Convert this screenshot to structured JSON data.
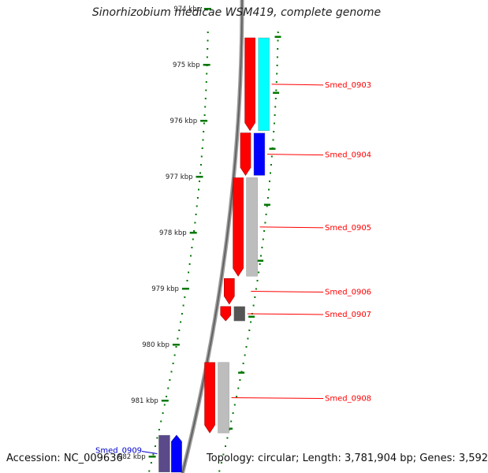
{
  "title": "Sinorhizobium medicae WSM419, complete genome",
  "footer": {
    "accession": "Accession: NC_009636",
    "topology": "Topology: circular; Length: 3,781,904 bp; Genes: 3,592"
  },
  "axis": {
    "unit": "kbp",
    "ticks": [
      "974 kbp",
      "975 kbp",
      "976 kbp",
      "977 kbp",
      "978 kbp",
      "979 kbp",
      "980 kbp",
      "981 kbp",
      "982 kbp"
    ]
  },
  "colors": {
    "cds_forward": "#ff0000",
    "cds_reverse_label": "#0000cc",
    "cog_cyan": "#00ffff",
    "cog_blue": "#0000ff",
    "cog_grey": "#bdbdbd",
    "cog_dark": "#555555",
    "cog_purple": "#5a4a8a",
    "backbone": "#808080",
    "tick": "#007700"
  },
  "genes": [
    {
      "label": "Smed_0903",
      "strand": "forward",
      "start_kbp": 974.5,
      "end_kbp": 976.2,
      "cog_color": "cyan"
    },
    {
      "label": "Smed_0904",
      "strand": "forward",
      "start_kbp": 976.2,
      "end_kbp": 977.0,
      "cog_color": "blue"
    },
    {
      "label": "Smed_0905",
      "strand": "forward",
      "start_kbp": 977.0,
      "end_kbp": 978.8,
      "cog_color": "grey"
    },
    {
      "label": "Smed_0906",
      "strand": "forward",
      "start_kbp": 978.8,
      "end_kbp": 979.3,
      "cog_color": "none"
    },
    {
      "label": "Smed_0907",
      "strand": "forward",
      "start_kbp": 979.3,
      "end_kbp": 979.6,
      "cog_color": "dark"
    },
    {
      "label": "Smed_0908",
      "strand": "forward",
      "start_kbp": 980.3,
      "end_kbp": 981.6,
      "cog_color": "grey"
    },
    {
      "label": "Smed_0909",
      "strand": "reverse",
      "start_kbp": 981.6,
      "end_kbp": 982.3,
      "cog_color": "purple"
    }
  ]
}
